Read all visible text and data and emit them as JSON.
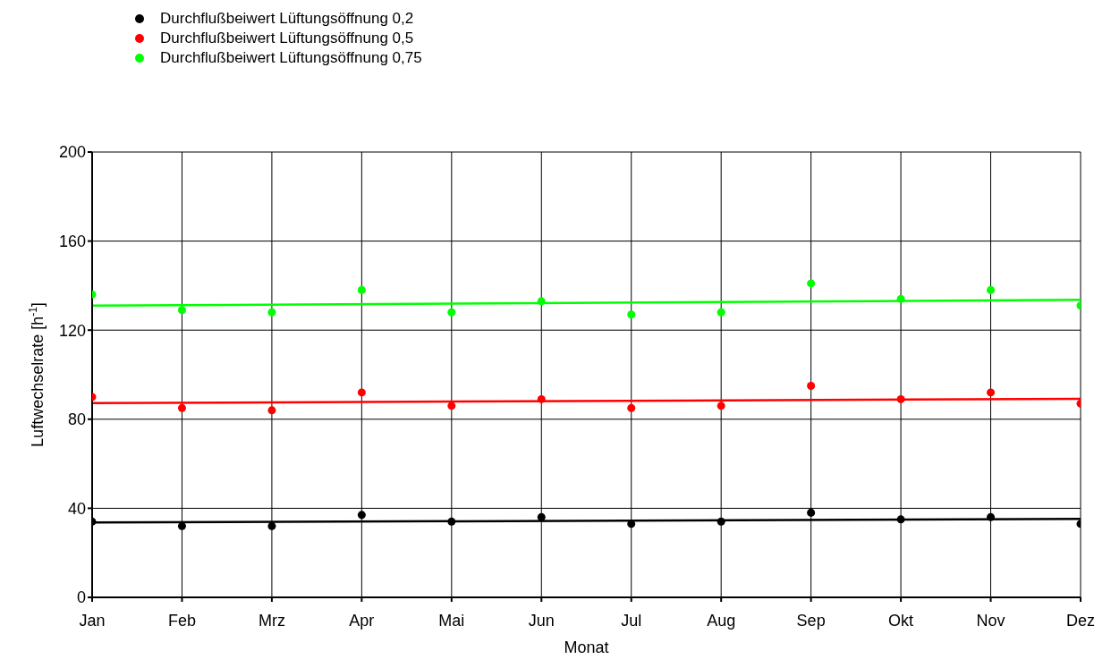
{
  "chart_data": {
    "type": "scatter",
    "xlabel": "Monat",
    "ylabel": "Luftwechselrate [h$^{-1}$]",
    "categories": [
      "Jan",
      "Feb",
      "Mrz",
      "Apr",
      "Mai",
      "Jun",
      "Jul",
      "Aug",
      "Sep",
      "Okt",
      "Nov",
      "Dez"
    ],
    "series": [
      {
        "name": "Durchflußbeiwert Lüftungsöffnung 0,2",
        "color": "#000000",
        "marker": "circle",
        "values": [
          34,
          32,
          32,
          37,
          34,
          36,
          33,
          34,
          38,
          35,
          36,
          33
        ]
      },
      {
        "name": "Durchflußbeiwert Lüftungsöffnung 0,5",
        "color": "#ff0000",
        "marker": "circle",
        "values": [
          90,
          85,
          84,
          92,
          86,
          89,
          85,
          86,
          95,
          89,
          92,
          87
        ]
      },
      {
        "name": "Durchflußbeiwert Lüftungsöffnung 0,75",
        "color": "#00ff00",
        "marker": "circle",
        "values": [
          136,
          129,
          128,
          138,
          128,
          133,
          127,
          128,
          141,
          134,
          138,
          131
        ]
      },
      {
        "type": "line",
        "x": [
          "Jan",
          "Dez"
        ],
        "color": "#000000",
        "marker": "none",
        "values": [
          33.6,
          35.2
        ]
      },
      {
        "type": "line",
        "x": [
          "Jan",
          "Dez"
        ],
        "color": "#ff0000",
        "marker": "none",
        "values": [
          87.2,
          89.2
        ]
      },
      {
        "type": "line",
        "x": [
          "Jan",
          "Dez"
        ],
        "color": "#00ff00",
        "marker": "none",
        "values": [
          131,
          133.6
        ]
      }
    ],
    "ylim": [
      0,
      200
    ],
    "yticks": [
      0,
      40,
      80,
      120,
      160,
      200
    ],
    "grid": true,
    "legend": "top left"
  }
}
